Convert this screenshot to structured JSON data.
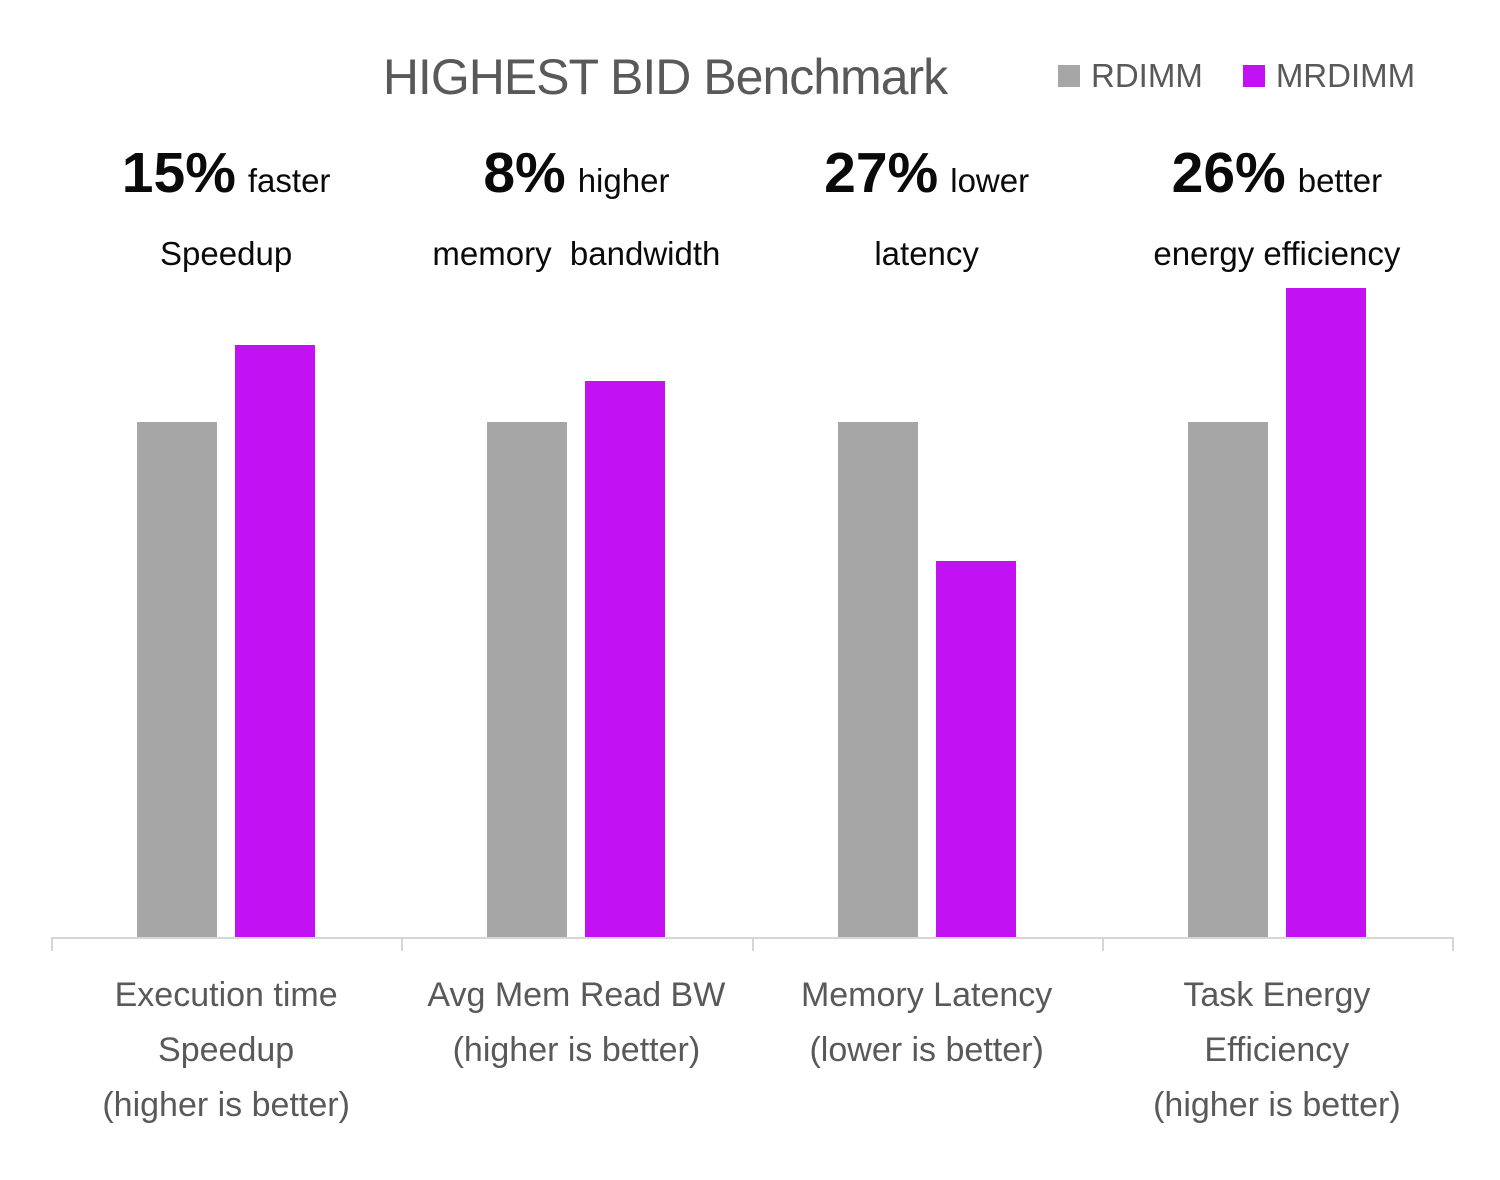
{
  "title": "HIGHEST BID Benchmark",
  "legend": [
    {
      "label": "RDIMM",
      "color": "#A6A6A6",
      "swatch_icon": "square-swatch"
    },
    {
      "label": "MRDIMM",
      "color": "#C211F2",
      "swatch_icon": "square-swatch"
    }
  ],
  "annotations": [
    {
      "value": "15%",
      "suffix": "faster",
      "line2": "Speedup"
    },
    {
      "value": "8%",
      "suffix": "higher",
      "line2": "memory  bandwidth"
    },
    {
      "value": "27%",
      "suffix": "lower",
      "line2": "latency"
    },
    {
      "value": "26%",
      "suffix": "better",
      "line2": "energy efficiency"
    }
  ],
  "chart_data": {
    "type": "bar",
    "title": "HIGHEST BID Benchmark",
    "categories": [
      [
        "Execution time",
        "Speedup",
        "(higher is better)"
      ],
      [
        "Avg Mem Read BW",
        "(higher is better)"
      ],
      [
        "Memory Latency",
        "(lower is better)"
      ],
      [
        "Task Energy",
        "Efficiency",
        "(higher is better)"
      ]
    ],
    "series": [
      {
        "name": "RDIMM",
        "color": "#A6A6A6",
        "values": [
          1.0,
          1.0,
          1.0,
          1.0
        ]
      },
      {
        "name": "MRDIMM",
        "color": "#C211F2",
        "values": [
          1.15,
          1.08,
          0.73,
          1.26
        ]
      }
    ],
    "values_are": "normalized to RDIMM = 1.0",
    "ylim": [
      0,
      1.3
    ],
    "grid": false,
    "y_axis_shown": false,
    "legend_position": "top-right"
  },
  "colors": {
    "background": "#FFFFFF",
    "title_text": "#595959",
    "axis_label_text": "#595959",
    "annotation_text": "#0A0A0A",
    "axis_line": "#D6D6D6",
    "rdimm_bar": "#A6A6A6",
    "mrdimm_bar": "#C211F2"
  }
}
